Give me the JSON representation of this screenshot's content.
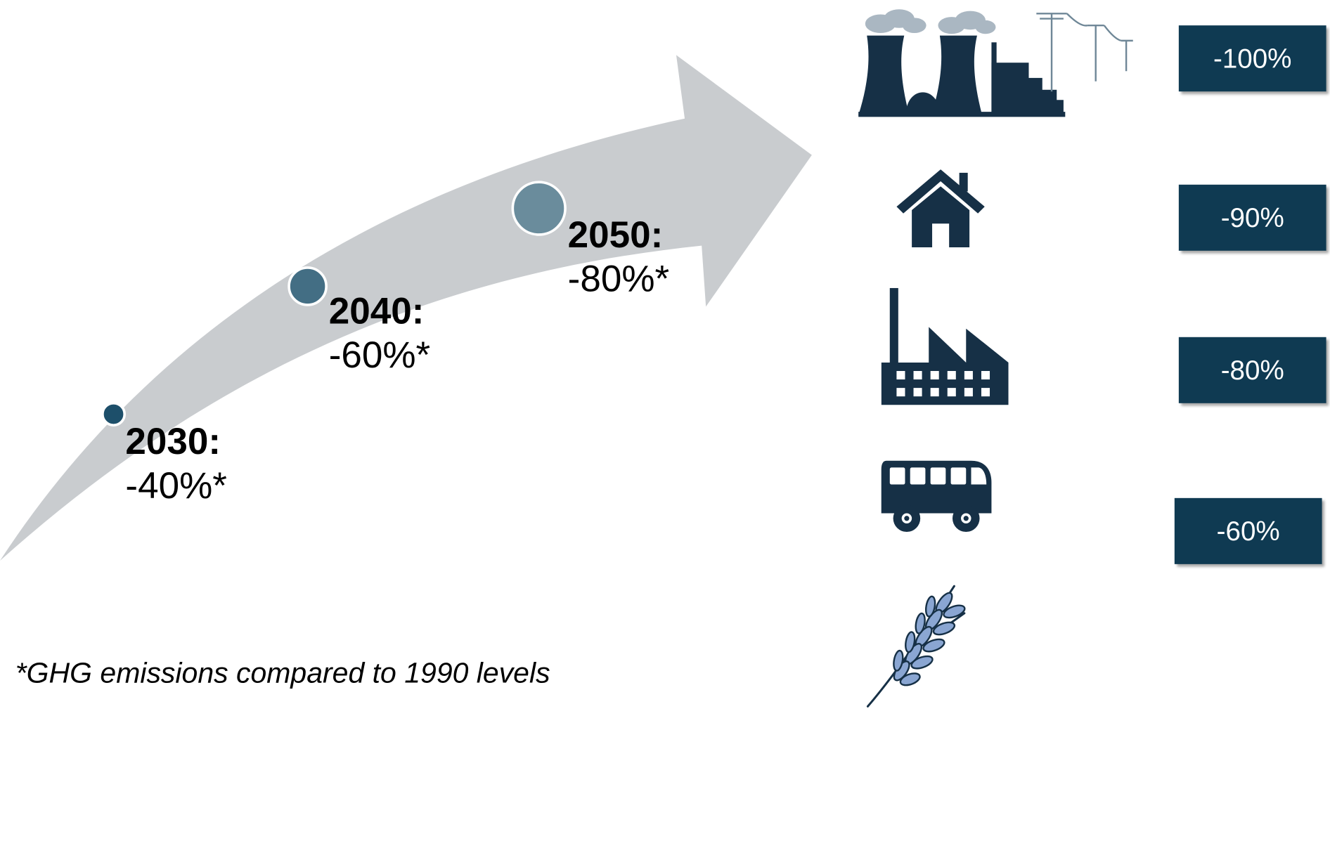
{
  "milestones": [
    {
      "year": "2030:",
      "reduction": "-40%*"
    },
    {
      "year": "2040:",
      "reduction": "-60%*"
    },
    {
      "year": "2050:",
      "reduction": "-80%*"
    }
  ],
  "sectors": [
    {
      "icon": "power-plant-icon",
      "reduction": "-100%"
    },
    {
      "icon": "house-icon",
      "reduction": "-90%"
    },
    {
      "icon": "factory-icon",
      "reduction": "-80%"
    },
    {
      "icon": "bus-icon",
      "reduction": "-60%"
    },
    {
      "icon": "wheat-icon",
      "reduction": ""
    }
  ],
  "footnote": "*GHG emissions compared to 1990 levels",
  "colors": {
    "arrow": "#c9cccf",
    "navy": "#0f3a52",
    "icon_dark": "#163046",
    "dot_2030": "#1d4f6a",
    "dot_2040": "#436e84",
    "dot_2050": "#6a8c9c",
    "wheat": "#8aa6d2"
  }
}
